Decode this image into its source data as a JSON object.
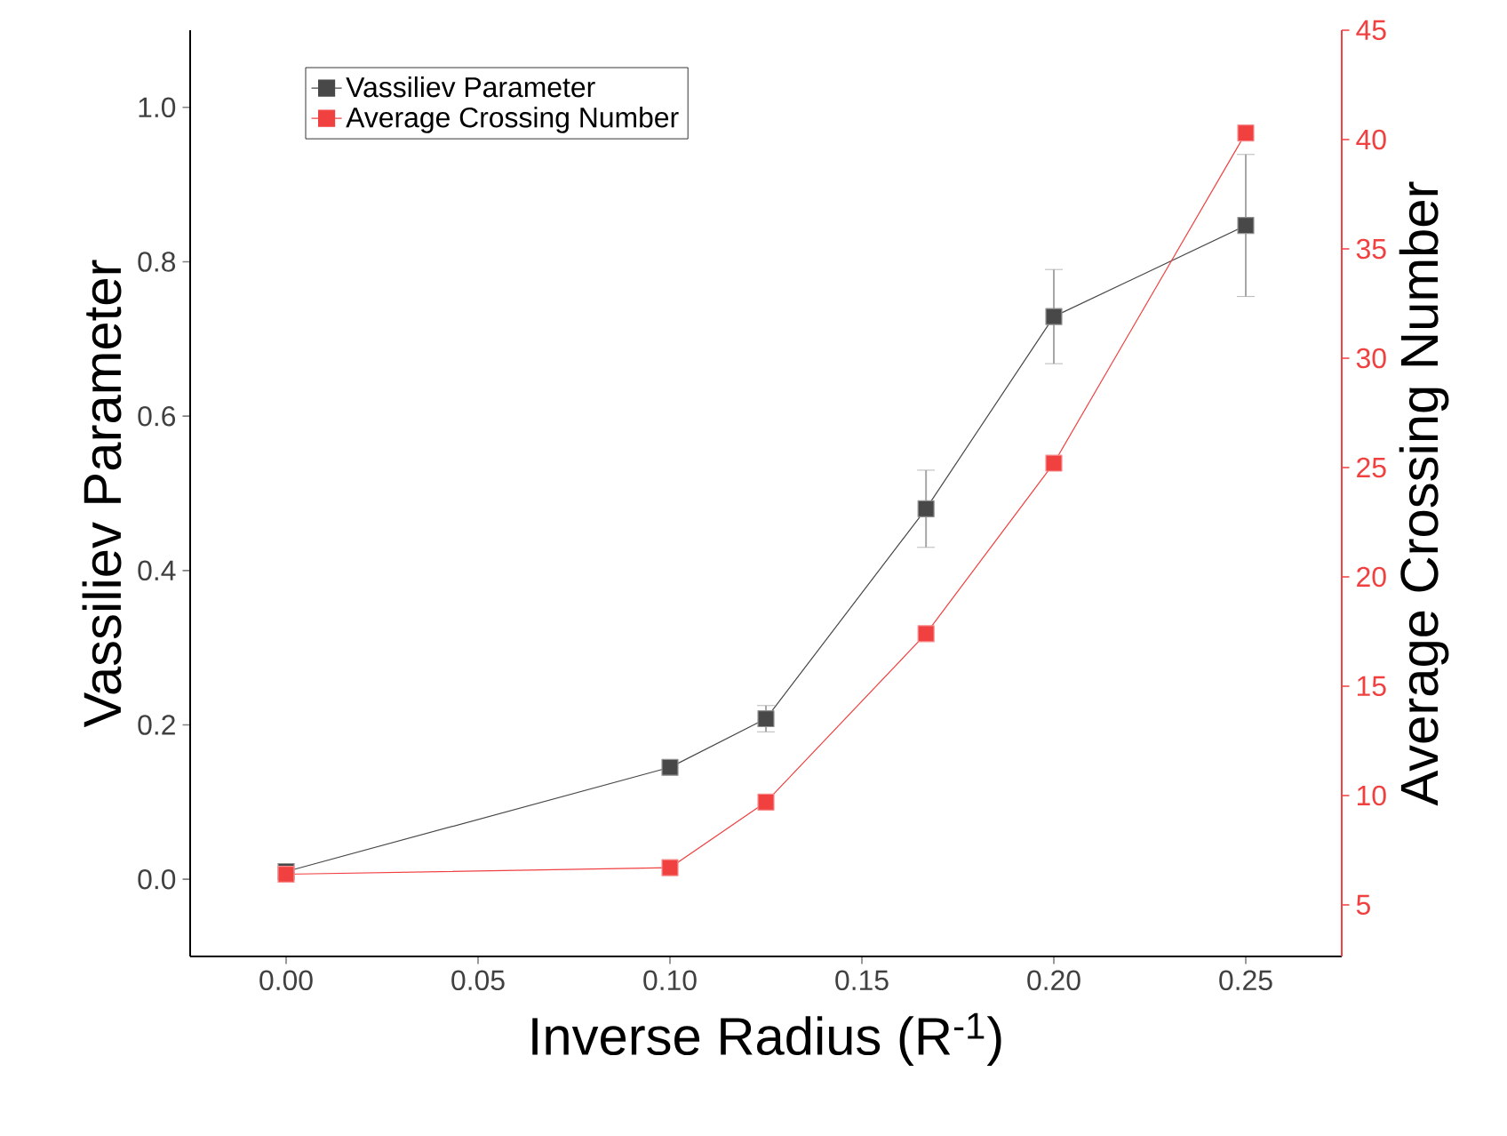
{
  "chart_data": {
    "type": "line",
    "xlabel": "Inverse Radius (R$^{-1}$)",
    "ylabel": "Vassiliev Parameter",
    "y2label": "Average Crossing Number",
    "x": [
      0,
      0.1,
      0.125,
      0.1667,
      0.2,
      0.25
    ],
    "series": [
      {
        "name": "Vassiliev Parameter",
        "color": "#484848",
        "values": [
          0.01,
          0.145,
          0.208,
          0.48,
          0.729,
          0.847
        ],
        "errors": [
          0.01,
          null,
          0.017,
          0.05,
          0.061,
          0.092
        ]
      },
      {
        "name": "Average Crossing Number",
        "color": "#f04040",
        "axis": "y2",
        "values": [
          6.4,
          6.7,
          9.7,
          17.4,
          25.2,
          40.3
        ]
      }
    ],
    "xlim": [
      -0.025,
      0.275
    ],
    "xticks": [
      {
        "value": 0,
        "label": "0.00"
      },
      {
        "value": 0.05,
        "label": "0.05"
      },
      {
        "value": 0.1,
        "label": "0.10"
      },
      {
        "value": 0.15,
        "label": "0.15"
      },
      {
        "value": 0.2,
        "label": "0.20"
      },
      {
        "value": 0.25,
        "label": "0.25"
      }
    ],
    "ylim": [
      -0.1,
      1.1
    ],
    "yticks": [
      {
        "value": 0,
        "label": "0.0"
      },
      {
        "value": 0.2,
        "label": "0.2"
      },
      {
        "value": 0.4,
        "label": "0.4"
      },
      {
        "value": 0.6,
        "label": "0.6"
      },
      {
        "value": 0.8,
        "label": "0.8"
      },
      {
        "value": 1,
        "label": "1.0"
      }
    ],
    "y2lim": [
      2.64,
      45
    ],
    "y2ticks": [
      5,
      10,
      15,
      20,
      25,
      30,
      35,
      40,
      45
    ],
    "legend": "top left",
    "grid": false,
    "marker": "square",
    "line_style": "solid"
  }
}
